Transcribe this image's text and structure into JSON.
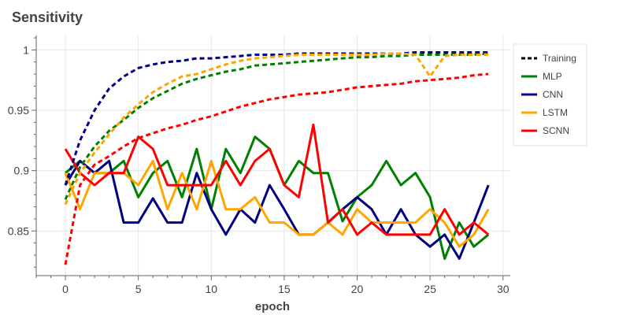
{
  "chart_data": {
    "type": "line",
    "title": "Sensitivity",
    "xlabel": "epoch",
    "ylabel": "",
    "xlim": [
      -2,
      30.5
    ],
    "ylim": [
      0.813,
      1.012
    ],
    "x_ticks": [
      0,
      5,
      10,
      15,
      20,
      25,
      30
    ],
    "x_tick_labels": [
      "0",
      "5",
      "10",
      "15",
      "20",
      "25",
      "30"
    ],
    "y_ticks": [
      0.85,
      0.9,
      0.95,
      1.0
    ],
    "y_tick_labels": [
      "0.85",
      "0.9",
      "0.95",
      "1"
    ],
    "grid": true,
    "legend_position": "top-right",
    "legend": [
      {
        "label": "Training",
        "color": "#000000",
        "dash": true
      },
      {
        "label": "MLP",
        "color": "#008000",
        "dash": false
      },
      {
        "label": "CNN",
        "color": "#000080",
        "dash": false
      },
      {
        "label": "LSTM",
        "color": "#FFA500",
        "dash": false
      },
      {
        "label": "SCNN",
        "color": "#FF0000",
        "dash": false
      }
    ],
    "x": [
      0,
      1,
      2,
      3,
      4,
      5,
      6,
      7,
      8,
      9,
      10,
      11,
      12,
      13,
      14,
      15,
      16,
      17,
      18,
      19,
      20,
      21,
      22,
      23,
      24,
      25,
      26,
      27,
      28,
      29
    ],
    "series": [
      {
        "name": "MLP",
        "kind": "validation",
        "color": "#008000",
        "dashed": false,
        "values": [
          0.898,
          0.908,
          0.898,
          0.898,
          0.908,
          0.878,
          0.898,
          0.908,
          0.878,
          0.918,
          0.868,
          0.918,
          0.898,
          0.928,
          0.918,
          0.888,
          0.908,
          0.898,
          0.898,
          0.858,
          0.878,
          0.888,
          0.908,
          0.888,
          0.898,
          0.878,
          0.827,
          0.857,
          0.837,
          0.847
        ]
      },
      {
        "name": "CNN",
        "kind": "validation",
        "color": "#000080",
        "dashed": false,
        "values": [
          0.888,
          0.908,
          0.898,
          0.908,
          0.857,
          0.857,
          0.877,
          0.857,
          0.857,
          0.898,
          0.868,
          0.847,
          0.868,
          0.857,
          0.888,
          0.868,
          0.847,
          0.847,
          0.857,
          0.868,
          0.878,
          0.868,
          0.847,
          0.868,
          0.847,
          0.837,
          0.847,
          0.827,
          0.857,
          0.888
        ]
      },
      {
        "name": "LSTM",
        "kind": "validation",
        "color": "#FFA500",
        "dashed": false,
        "values": [
          0.898,
          0.868,
          0.898,
          0.898,
          0.898,
          0.888,
          0.908,
          0.868,
          0.898,
          0.868,
          0.908,
          0.868,
          0.868,
          0.878,
          0.857,
          0.857,
          0.847,
          0.847,
          0.857,
          0.847,
          0.868,
          0.857,
          0.857,
          0.857,
          0.857,
          0.868,
          0.857,
          0.837,
          0.847,
          0.868
        ]
      },
      {
        "name": "SCNN",
        "kind": "validation",
        "color": "#FF0000",
        "dashed": false,
        "values": [
          0.918,
          0.898,
          0.888,
          0.898,
          0.898,
          0.928,
          0.918,
          0.888,
          0.888,
          0.888,
          0.888,
          0.908,
          0.888,
          0.908,
          0.918,
          0.888,
          0.878,
          0.938,
          0.857,
          0.868,
          0.847,
          0.857,
          0.847,
          0.847,
          0.847,
          0.847,
          0.868,
          0.847,
          0.857,
          0.847
        ]
      },
      {
        "name": "",
        "kind": "training",
        "color": "#000080",
        "dashed": true,
        "values": [
          0.888,
          0.925,
          0.95,
          0.968,
          0.978,
          0.985,
          0.988,
          0.99,
          0.991,
          0.993,
          0.993,
          0.994,
          0.995,
          0.996,
          0.996,
          0.996,
          0.997,
          0.997,
          0.997,
          0.997,
          0.997,
          0.997,
          0.997,
          0.997,
          0.998,
          0.998,
          0.998,
          0.998,
          0.998,
          0.998
        ]
      },
      {
        "name": "",
        "kind": "training",
        "color": "#008000",
        "dashed": true,
        "values": [
          0.876,
          0.903,
          0.92,
          0.933,
          0.942,
          0.952,
          0.96,
          0.966,
          0.972,
          0.976,
          0.979,
          0.982,
          0.984,
          0.987,
          0.988,
          0.989,
          0.99,
          0.991,
          0.992,
          0.993,
          0.994,
          0.994,
          0.995,
          0.995,
          0.996,
          0.996,
          0.996,
          0.996,
          0.996,
          0.997
        ]
      },
      {
        "name": "",
        "kind": "training",
        "color": "#FFA500",
        "dashed": true,
        "values": [
          0.872,
          0.898,
          0.915,
          0.93,
          0.944,
          0.955,
          0.965,
          0.972,
          0.978,
          0.98,
          0.984,
          0.988,
          0.991,
          0.993,
          0.994,
          0.995,
          0.996,
          0.996,
          0.996,
          0.996,
          0.996,
          0.996,
          0.997,
          0.997,
          0.996,
          0.978,
          0.995,
          0.996,
          0.996,
          0.996
        ]
      },
      {
        "name": "",
        "kind": "training",
        "color": "#FF0000",
        "dashed": true,
        "values": [
          0.822,
          0.888,
          0.905,
          0.912,
          0.92,
          0.927,
          0.931,
          0.935,
          0.938,
          0.942,
          0.945,
          0.949,
          0.953,
          0.956,
          0.959,
          0.961,
          0.963,
          0.964,
          0.965,
          0.967,
          0.969,
          0.97,
          0.971,
          0.972,
          0.974,
          0.975,
          0.976,
          0.977,
          0.979,
          0.98
        ]
      }
    ]
  }
}
